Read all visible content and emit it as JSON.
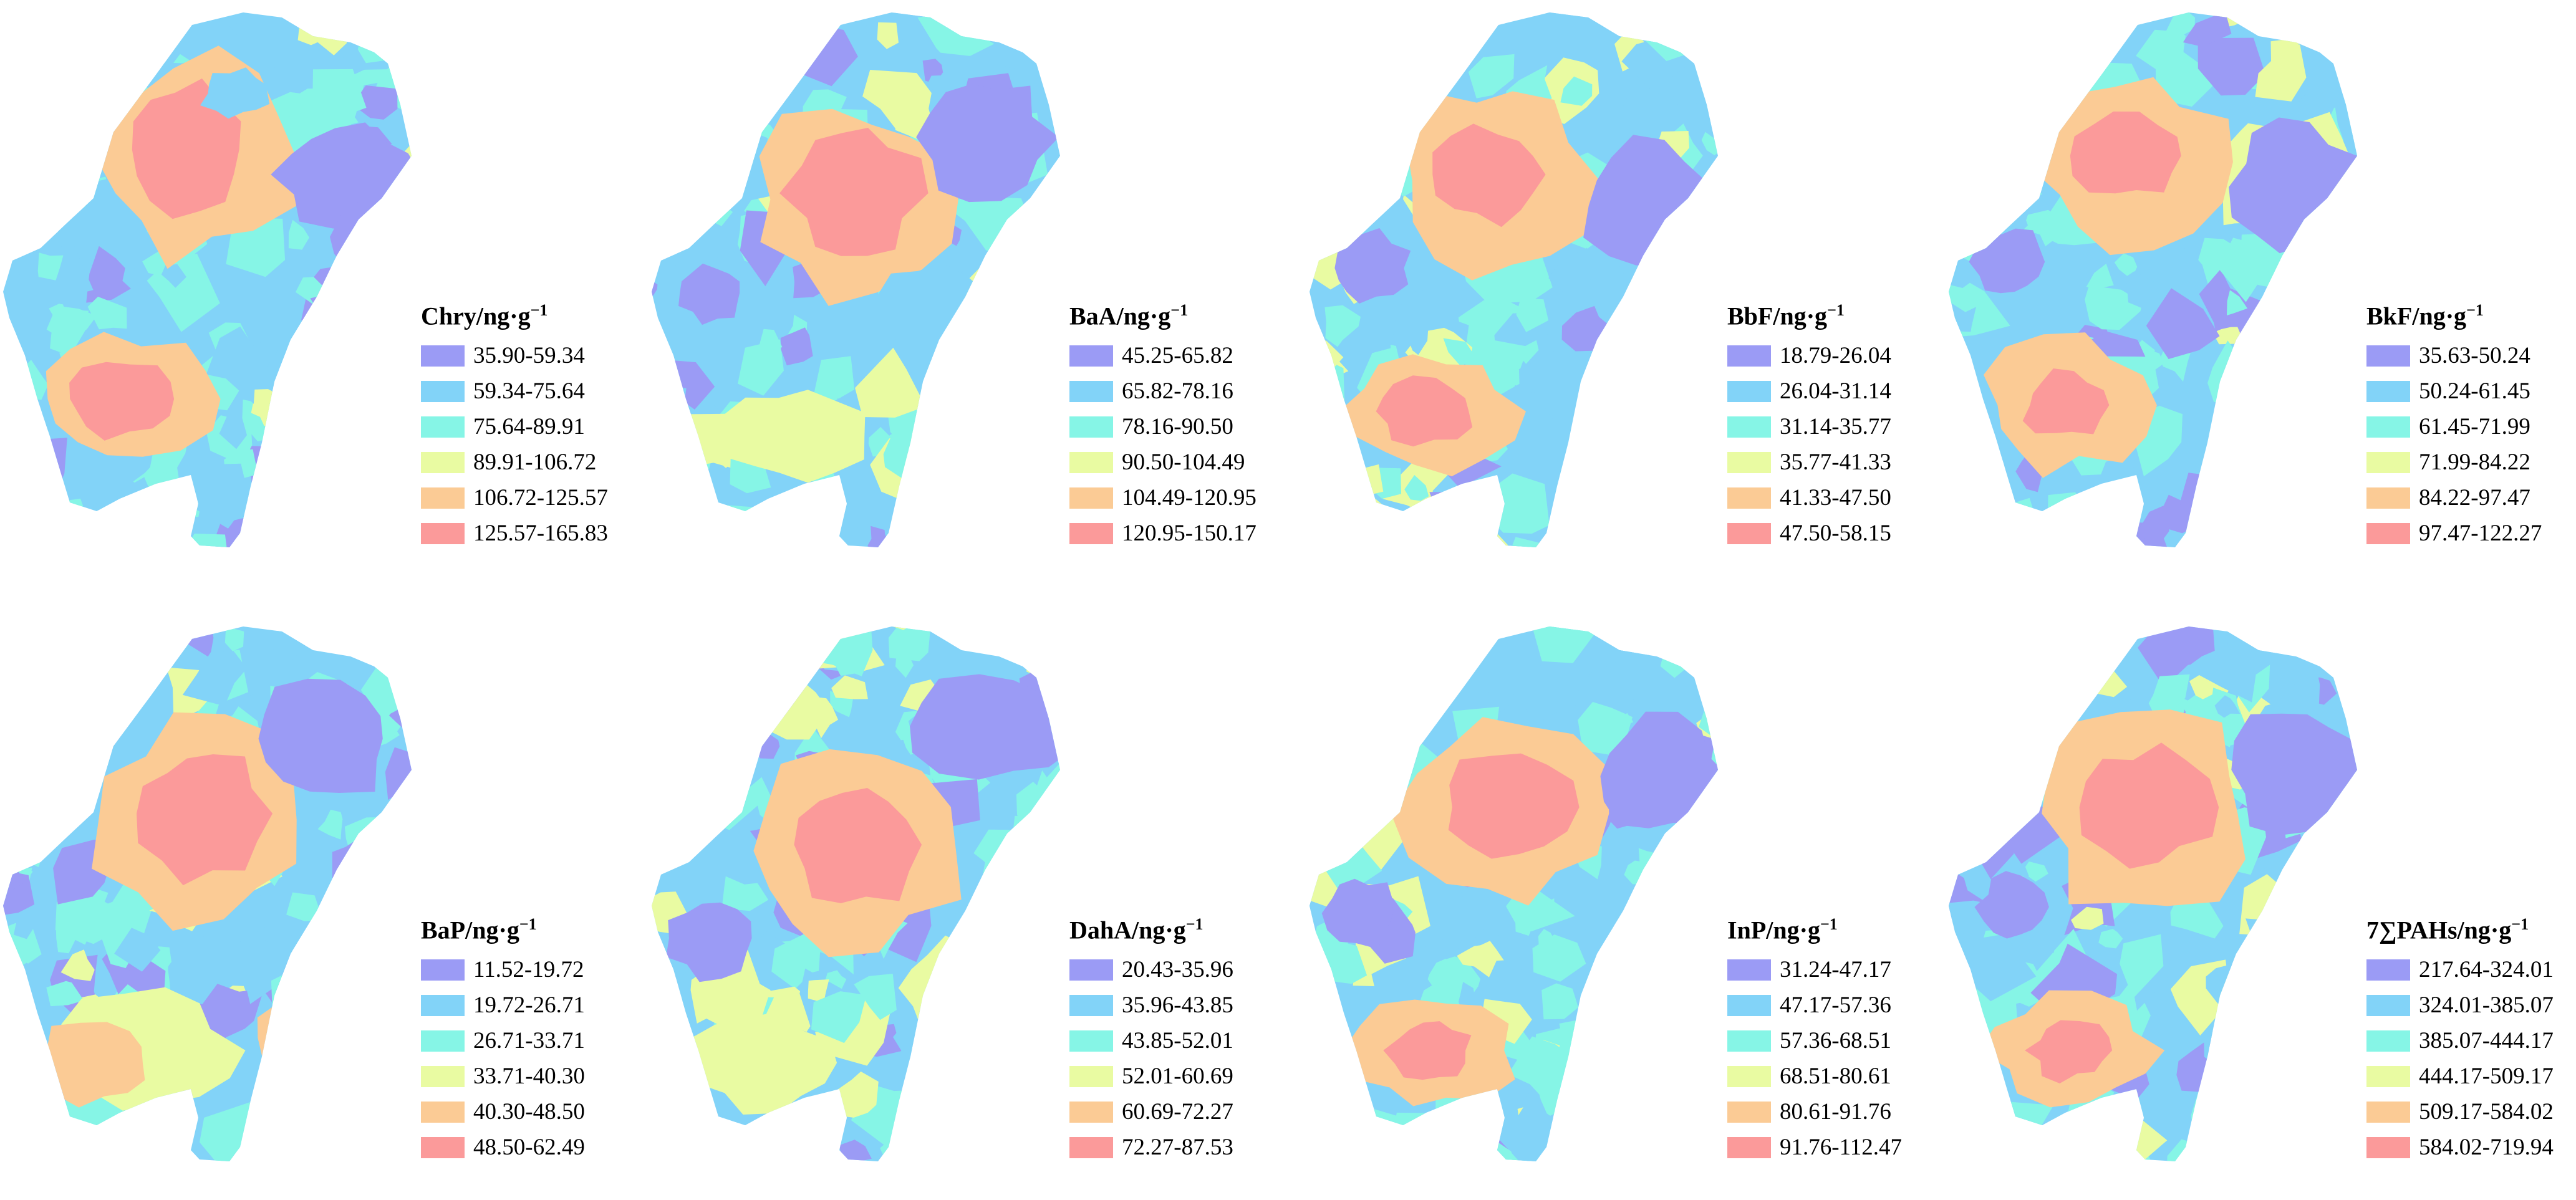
{
  "class_colors": [
    "#9b9bf5",
    "#82d3f8",
    "#86f5e6",
    "#e9fba2",
    "#fbcb95",
    "#fb9a9a"
  ],
  "panels": [
    {
      "name": "Chry",
      "title": "Chry/ng·g",
      "superscript": "−1",
      "classes": [
        "35.90-59.34",
        "59.34-75.64",
        "75.64-89.91",
        "89.91-106.72",
        "106.72-125.57",
        "125.57-165.83"
      ]
    },
    {
      "name": "BaA",
      "title": "BaA/ng·g",
      "superscript": "−1",
      "classes": [
        "45.25-65.82",
        "65.82-78.16",
        "78.16-90.50",
        "90.50-104.49",
        "104.49-120.95",
        "120.95-150.17"
      ]
    },
    {
      "name": "BbF",
      "title": "BbF/ng·g",
      "superscript": "−1",
      "classes": [
        "18.79-26.04",
        "26.04-31.14",
        "31.14-35.77",
        "35.77-41.33",
        "41.33-47.50",
        "47.50-58.15"
      ]
    },
    {
      "name": "BkF",
      "title": "BkF/ng·g",
      "superscript": "−1",
      "classes": [
        "35.63-50.24",
        "50.24-61.45",
        "61.45-71.99",
        "71.99-84.22",
        "84.22-97.47",
        "97.47-122.27"
      ]
    },
    {
      "name": "BaP",
      "title": "BaP/ng·g",
      "superscript": "−1",
      "classes": [
        "11.52-19.72",
        "19.72-26.71",
        "26.71-33.71",
        "33.71-40.30",
        "40.30-48.50",
        "48.50-62.49"
      ]
    },
    {
      "name": "DahA",
      "title": "DahA/ng·g",
      "superscript": "−1",
      "classes": [
        "20.43-35.96",
        "35.96-43.85",
        "43.85-52.01",
        "52.01-60.69",
        "60.69-72.27",
        "72.27-87.53"
      ]
    },
    {
      "name": "InP",
      "title": "InP/ng·g",
      "superscript": "−1",
      "classes": [
        "31.24-47.17",
        "47.17-57.36",
        "57.36-68.51",
        "68.51-80.61",
        "80.61-91.76",
        "91.76-112.47"
      ]
    },
    {
      "name": "PAHs",
      "title": "7∑PAHs/ng·g",
      "superscript": "−1",
      "classes": [
        "217.64-324.01",
        "324.01-385.07",
        "385.07-444.17",
        "444.17-509.17",
        "509.17-584.02",
        "584.02-719.94"
      ]
    }
  ]
}
